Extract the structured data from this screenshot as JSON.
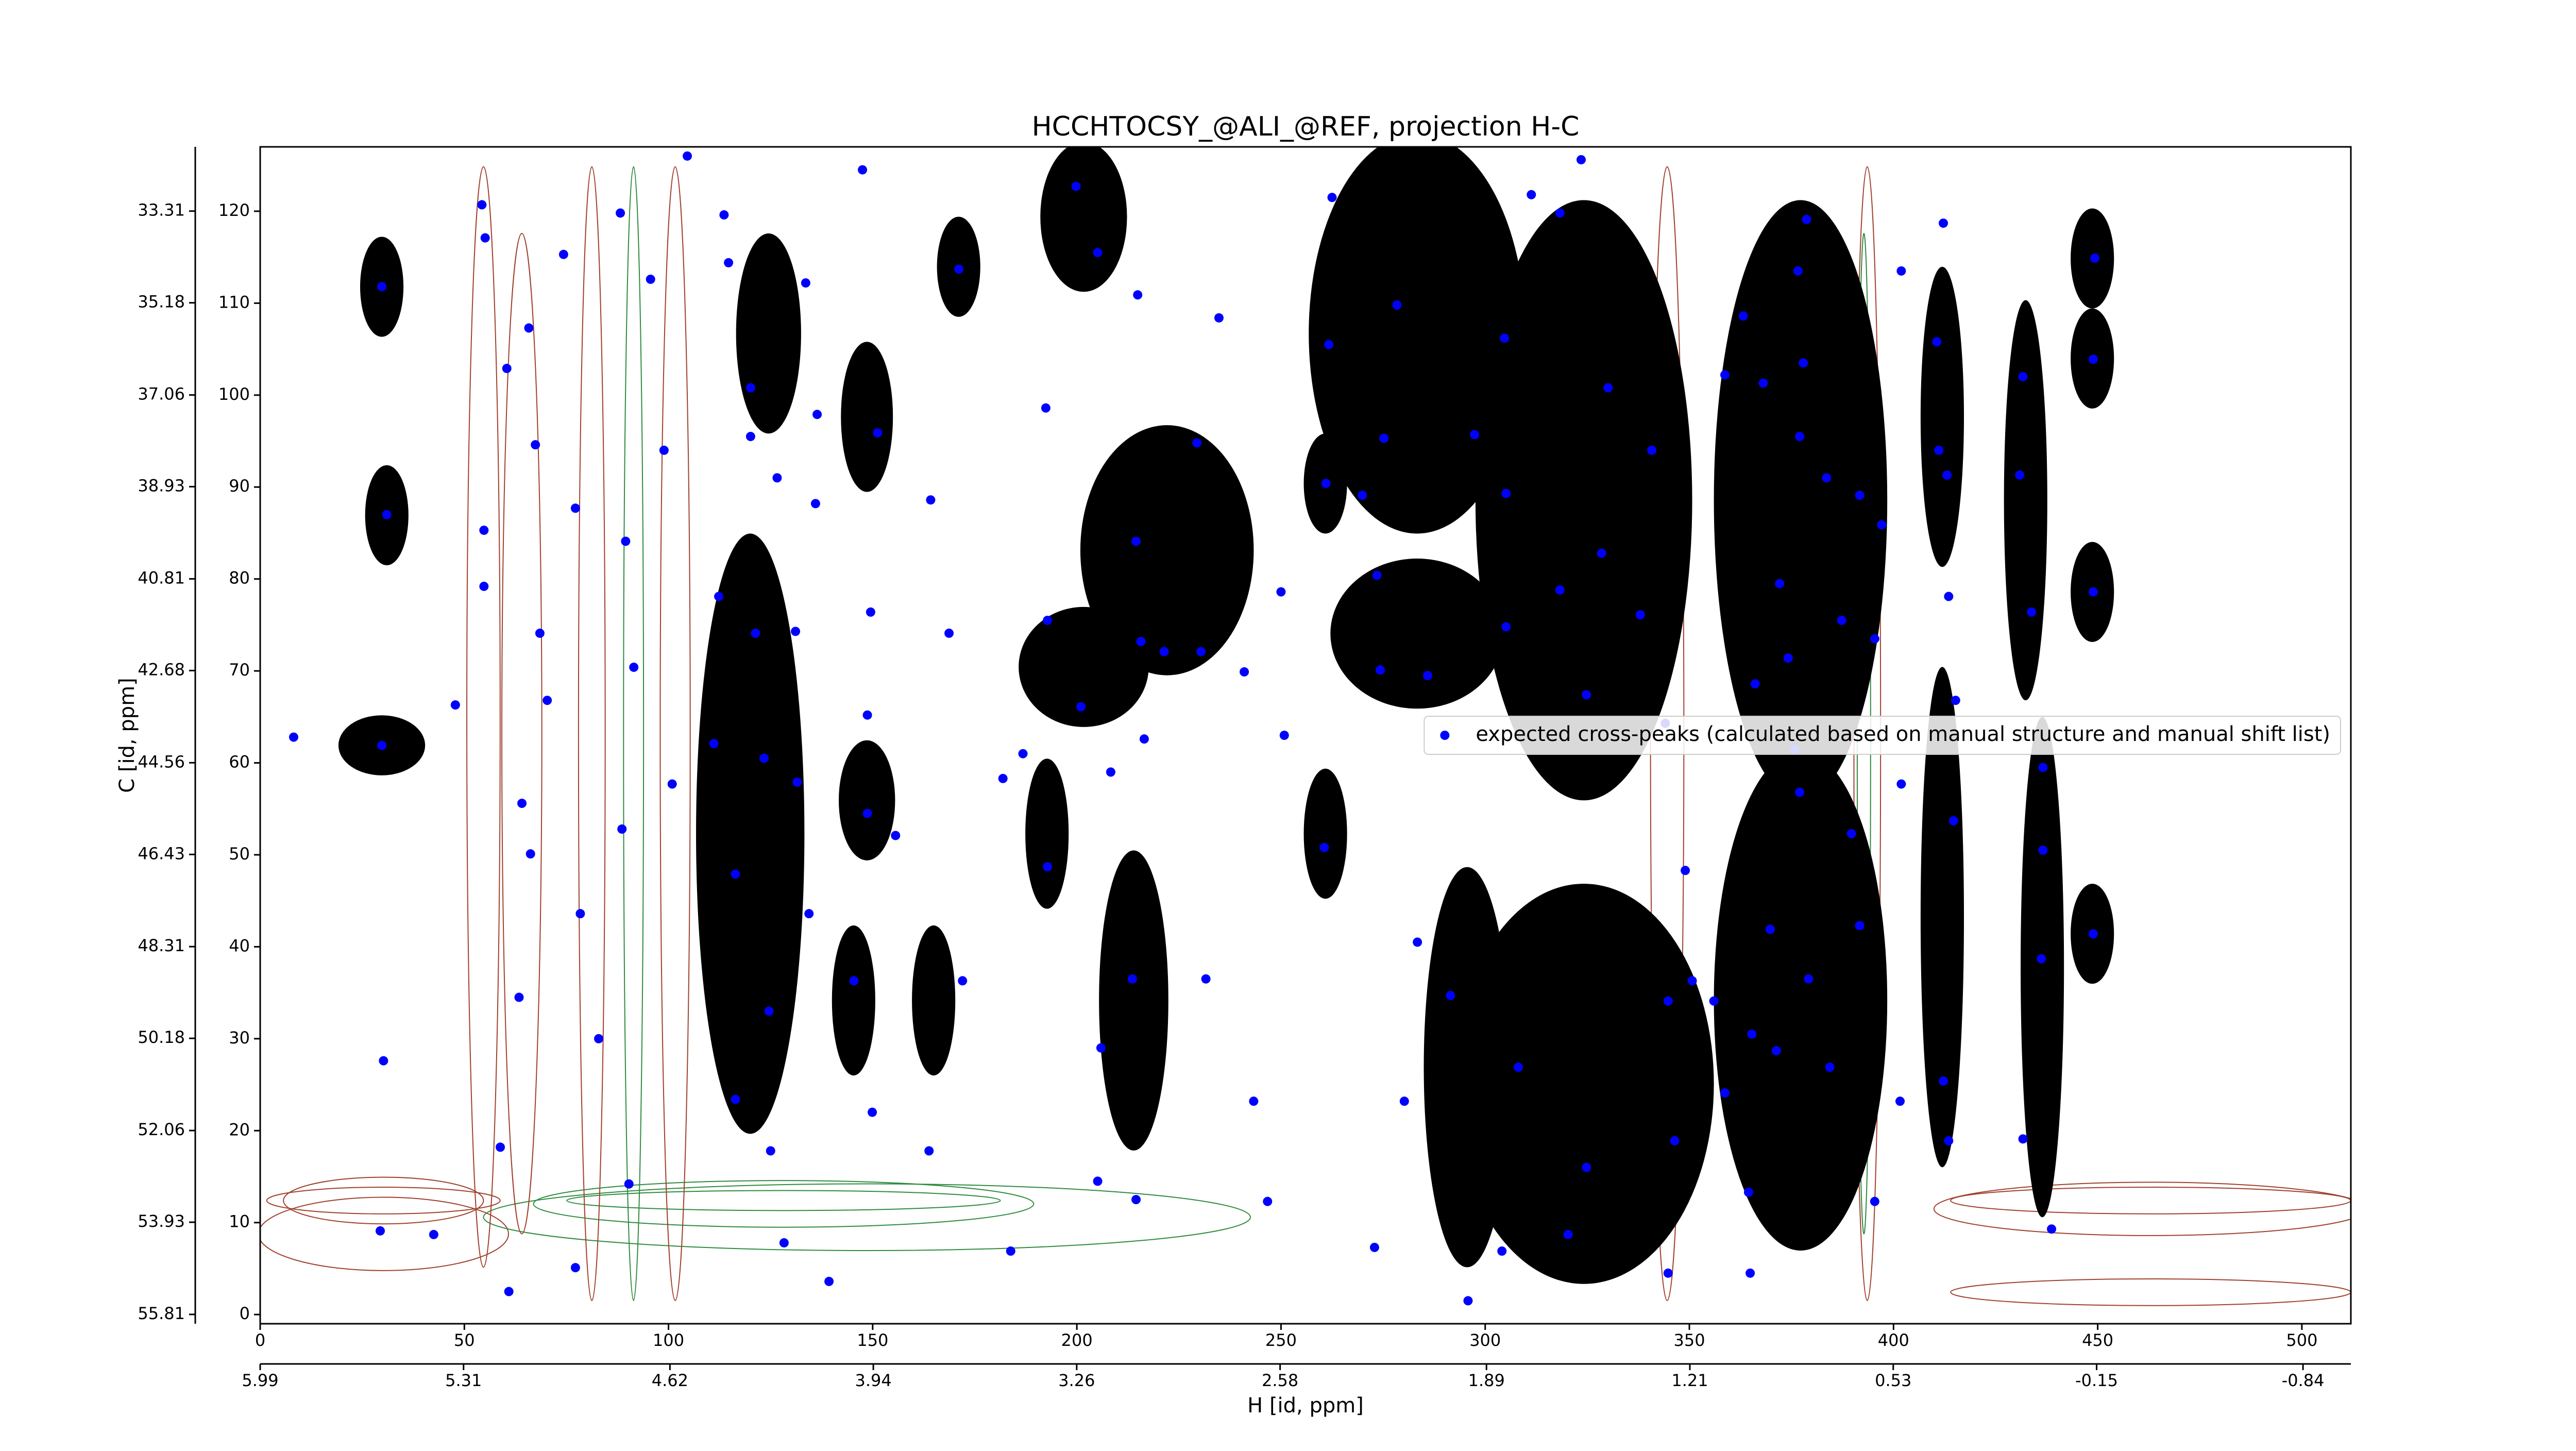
{
  "chart_data": {
    "type": "scatter",
    "title": "HCCHTOCSY_@ALI_@REF, projection H-C",
    "xlabel": "H [id, ppm]",
    "ylabel": "C [id, ppm]",
    "xlim": [
      0,
      512
    ],
    "ylim": [
      -1,
      127
    ],
    "xticks": [
      0,
      50,
      100,
      150,
      200,
      250,
      300,
      350,
      400,
      450,
      500
    ],
    "yticks": [
      0,
      10,
      20,
      30,
      40,
      50,
      60,
      70,
      80,
      90,
      100,
      110,
      120
    ],
    "x2lim": [
      5.99,
      -1.0
    ],
    "x2ticks": [
      5.99,
      5.31,
      4.62,
      3.94,
      3.26,
      2.58,
      1.89,
      1.21,
      0.53,
      -0.15,
      -0.84
    ],
    "y2lim": [
      56.0,
      32.0
    ],
    "y2ticks": [
      55.81,
      53.93,
      52.06,
      50.18,
      48.31,
      46.43,
      44.56,
      42.68,
      40.81,
      38.93,
      37.06,
      35.18,
      33.31
    ],
    "legend_loc": "center right",
    "series": [
      {
        "name": "expected cross-peaks (calculated based on manual structure and manual shift list)",
        "color": "#0000ff",
        "x": [
          8.2,
          29.8,
          31.0,
          29.8,
          30.2,
          29.4,
          54.3,
          55.1,
          60.4,
          54.8,
          54.8,
          47.8,
          64.1,
          66.2,
          63.4,
          58.8,
          60.9,
          67.4,
          65.8,
          68.5,
          70.3,
          74.3,
          77.2,
          78.4,
          82.9,
          88.2,
          89.5,
          91.5,
          88.6,
          90.3,
          95.6,
          98.9,
          100.9,
          104.6,
          113.6,
          114.7,
          112.3,
          111.1,
          116.4,
          116.4,
          120.1,
          120.1,
          126.6,
          121.3,
          123.4,
          124.6,
          125.0,
          133.6,
          136.4,
          136.0,
          131.1,
          131.5,
          134.4,
          139.3,
          147.5,
          151.2,
          149.5,
          148.7,
          148.7,
          155.6,
          145.4,
          149.9,
          171.1,
          168.7,
          172.0,
          163.8,
          164.2,
          192.4,
          192.8,
          192.8,
          186.8,
          181.9,
          199.8,
          201.0,
          205.1,
          214.9,
          234.8,
          214.5,
          229.4,
          215.7,
          221.4,
          230.4,
          216.5,
          208.3,
          213.6,
          231.6,
          205.9,
          205.1,
          214.5,
          241.0,
          250.8,
          250.0,
          261.0,
          260.6,
          243.3,
          262.5,
          261.7,
          269.9,
          278.4,
          275.2,
          273.5,
          274.3,
          285.9,
          283.4,
          291.5,
          280.2,
          272.9,
          297.4,
          305.1,
          304.7,
          305.1,
          311.3,
          318.3,
          323.5,
          318.3,
          328.5,
          324.8,
          330.1,
          340.8,
          338.0,
          344.1,
          349.0,
          350.7,
          356.0,
          358.7,
          346.4,
          363.2,
          358.7,
          368.1,
          378.7,
          376.6,
          377.9,
          377.0,
          383.6,
          372.1,
          374.2,
          391.7,
          387.3,
          397.1,
          395.4,
          375.8,
          377.0,
          369.8,
          379.2,
          391.7,
          371.3,
          384.4,
          401.6,
          395.4,
          364.5,
          364.9,
          410.6,
          411.1,
          413.1,
          413.5,
          415.2,
          414.7,
          413.5,
          412.2,
          431.7,
          430.9,
          433.8,
          436.6,
          436.6,
          436.2,
          431.7,
          438.7,
          449.3,
          448.9,
          448.9,
          448.9,
          412.2,
          401.9,
          344.8,
          320.3,
          295.8,
          304.1,
          246.7,
          183.8,
          128.3,
          77.2,
          42.5,
          308.1,
          324.8,
          344.8,
          365.3,
          389.7,
          401.9,
          366.1
        ],
        "values": [
          62.8,
          111.8,
          87.0,
          61.9,
          27.6,
          9.1,
          120.7,
          117.1,
          102.9,
          85.3,
          79.2,
          66.3,
          55.6,
          50.1,
          34.5,
          18.2,
          2.5,
          94.6,
          107.3,
          74.1,
          66.8,
          115.3,
          87.7,
          43.6,
          30.0,
          119.8,
          84.1,
          70.4,
          52.8,
          14.2,
          112.6,
          94.0,
          57.7,
          126.0,
          119.6,
          114.4,
          78.1,
          62.1,
          47.9,
          23.4,
          100.8,
          95.5,
          91.0,
          74.1,
          60.5,
          33.0,
          17.8,
          112.2,
          97.9,
          88.2,
          74.3,
          57.9,
          43.6,
          3.6,
          124.5,
          95.9,
          76.4,
          65.2,
          54.5,
          52.1,
          36.3,
          22.0,
          113.7,
          74.1,
          36.3,
          17.8,
          88.6,
          98.6,
          48.7,
          75.5,
          61.0,
          58.3,
          122.7,
          66.1,
          115.5,
          110.9,
          108.4,
          84.1,
          94.8,
          73.2,
          72.1,
          72.1,
          62.6,
          59.0,
          36.5,
          36.5,
          29.0,
          14.5,
          12.5,
          69.9,
          63.0,
          78.6,
          90.4,
          50.8,
          23.2,
          121.5,
          105.5,
          89.1,
          109.8,
          95.3,
          80.4,
          70.1,
          69.5,
          40.5,
          34.7,
          23.2,
          7.3,
          95.7,
          89.3,
          106.2,
          74.8,
          121.8,
          119.8,
          125.6,
          78.8,
          82.8,
          67.4,
          100.8,
          94.0,
          76.1,
          64.3,
          48.3,
          36.3,
          34.1,
          24.1,
          18.9,
          108.6,
          102.2,
          101.3,
          119.1,
          113.5,
          103.5,
          95.5,
          91.0,
          79.5,
          71.4,
          89.1,
          75.5,
          85.9,
          73.5,
          61.5,
          56.8,
          41.9,
          36.5,
          42.3,
          28.7,
          26.9,
          23.2,
          12.3,
          13.3,
          4.5,
          105.8,
          94.0,
          91.3,
          78.1,
          66.8,
          53.7,
          18.9,
          25.4,
          102.0,
          91.3,
          76.4,
          59.5,
          50.5,
          38.7,
          19.1,
          9.3,
          114.9,
          103.9,
          78.6,
          41.4,
          118.7,
          113.5,
          4.5,
          8.7,
          1.5,
          6.9,
          12.3,
          6.9,
          7.8,
          5.1,
          8.7,
          26.9,
          16.0,
          34.1,
          30.5,
          52.3,
          57.7,
          68.6
        ]
      }
    ]
  }
}
